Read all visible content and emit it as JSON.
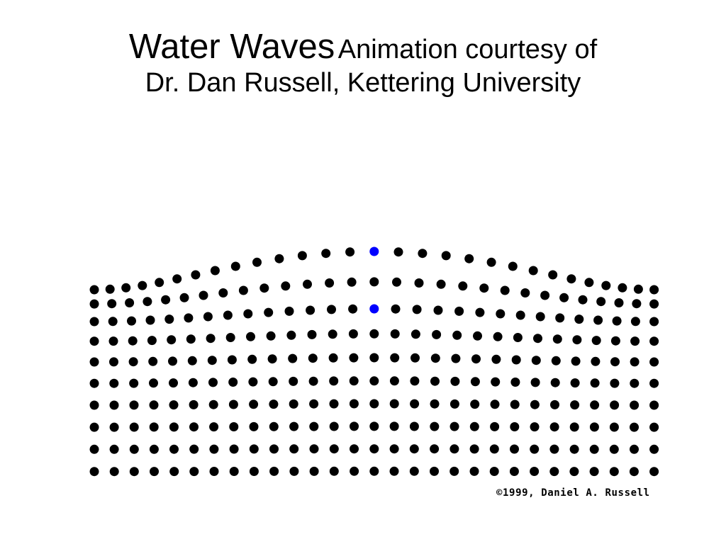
{
  "title": {
    "main": "Water Waves",
    "subtitle_line1": "Animation courtesy of",
    "subtitle_line2": "Dr. Dan Russell, Kettering University"
  },
  "animation": {
    "columns": 29,
    "rows": 10,
    "highlighted_particles": [
      {
        "column": 14,
        "row": 0
      },
      {
        "column": 14,
        "row": 2
      }
    ],
    "particle_color": "#000000",
    "highlight_color": "#0000ff"
  },
  "copyright": "©1999, Daniel A. Russell"
}
